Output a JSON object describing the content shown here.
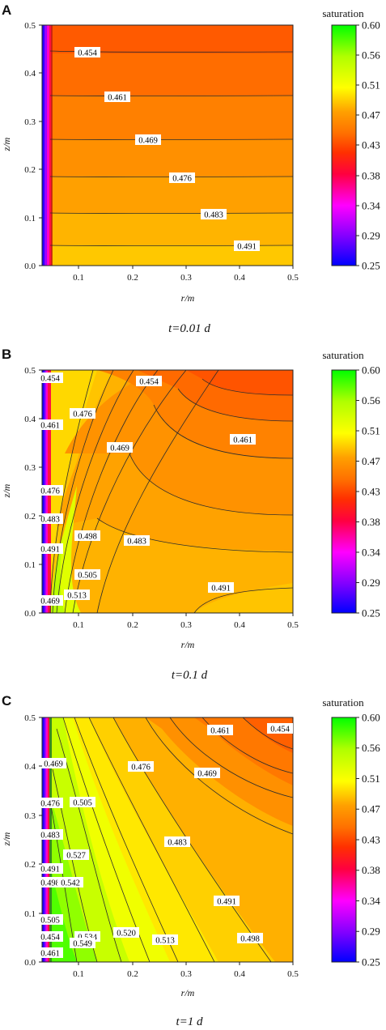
{
  "chart_data": [
    {
      "type": "contour",
      "panel_label": "A",
      "time_label": "t=0.01 d",
      "xlabel": "r/m",
      "ylabel": "z/m",
      "xlim": [
        0.02,
        0.5
      ],
      "ylim": [
        0.0,
        0.5
      ],
      "x_ticks": [
        "0.1",
        "0.2",
        "0.3",
        "0.4",
        "0.5"
      ],
      "y_ticks": [
        "0.0",
        "0.1",
        "0.2",
        "0.3",
        "0.4",
        "0.5"
      ],
      "colorbar_title": "saturation",
      "colorbar_ticks": [
        "0.60",
        "0.56",
        "0.51",
        "0.47",
        "0.43",
        "0.38",
        "0.34",
        "0.29",
        "0.25"
      ],
      "contour_labels": [
        {
          "text": "0.454",
          "r": 0.13,
          "z": 0.45
        },
        {
          "text": "0.461",
          "r": 0.2,
          "z": 0.36
        },
        {
          "text": "0.469",
          "r": 0.26,
          "z": 0.26
        },
        {
          "text": "0.476",
          "r": 0.31,
          "z": 0.176
        },
        {
          "text": "0.483",
          "r": 0.37,
          "z": 0.101
        },
        {
          "text": "0.491",
          "r": 0.43,
          "z": 0.039
        }
      ]
    },
    {
      "type": "contour",
      "panel_label": "B",
      "time_label": "t=0.1 d",
      "xlabel": "r/m",
      "ylabel": "z/m",
      "xlim": [
        0.02,
        0.5
      ],
      "ylim": [
        0.0,
        0.5
      ],
      "x_ticks": [
        "0.1",
        "0.2",
        "0.3",
        "0.4",
        "0.5"
      ],
      "y_ticks": [
        "0.0",
        "0.1",
        "0.2",
        "0.3",
        "0.4",
        "0.5"
      ],
      "colorbar_title": "saturation",
      "colorbar_ticks": [
        "0.60",
        "0.56",
        "0.51",
        "0.47",
        "0.43",
        "0.38",
        "0.34",
        "0.29",
        "0.25"
      ],
      "contour_labels": [
        {
          "text": "0.454",
          "r": 0.033,
          "z": 0.483
        },
        {
          "text": "0.454",
          "r": 0.265,
          "z": 0.46
        },
        {
          "text": "0.476",
          "r": 0.095,
          "z": 0.405
        },
        {
          "text": "0.461",
          "r": 0.033,
          "z": 0.37
        },
        {
          "text": "0.469",
          "r": 0.185,
          "z": 0.335
        },
        {
          "text": "0.461",
          "r": 0.425,
          "z": 0.355
        },
        {
          "text": "0.476",
          "r": 0.033,
          "z": 0.255
        },
        {
          "text": "0.483",
          "r": 0.033,
          "z": 0.185
        },
        {
          "text": "0.498",
          "r": 0.098,
          "z": 0.158
        },
        {
          "text": "0.483",
          "r": 0.228,
          "z": 0.143
        },
        {
          "text": "0.491",
          "r": 0.033,
          "z": 0.118
        },
        {
          "text": "0.505",
          "r": 0.098,
          "z": 0.056
        },
        {
          "text": "0.513",
          "r": 0.078,
          "z": 0.03
        },
        {
          "text": "0.491",
          "r": 0.39,
          "z": 0.05
        },
        {
          "text": "0.469",
          "r": 0.033,
          "z": 0.021
        }
      ]
    },
    {
      "type": "contour",
      "panel_label": "C",
      "time_label": "t=1 d",
      "xlabel": "r/m",
      "ylabel": "z/m",
      "xlim": [
        0.02,
        0.5
      ],
      "ylim": [
        0.0,
        0.5
      ],
      "x_ticks": [
        "0.1",
        "0.2",
        "0.3",
        "0.4",
        "0.5"
      ],
      "y_ticks": [
        "0.0",
        "0.1",
        "0.2",
        "0.3",
        "0.4",
        "0.5"
      ],
      "colorbar_title": "saturation",
      "colorbar_ticks": [
        "0.60",
        "0.56",
        "0.51",
        "0.47",
        "0.43",
        "0.38",
        "0.34",
        "0.29",
        "0.25"
      ],
      "contour_labels": [
        {
          "text": "0.461",
          "r": 0.335,
          "z": 0.47
        },
        {
          "text": "0.454",
          "r": 0.478,
          "z": 0.474
        },
        {
          "text": "0.476",
          "r": 0.172,
          "z": 0.405
        },
        {
          "text": "0.469",
          "r": 0.306,
          "z": 0.392
        },
        {
          "text": "0.469",
          "r": 0.043,
          "z": 0.395
        },
        {
          "text": "0.476",
          "r": 0.033,
          "z": 0.325
        },
        {
          "text": "0.505",
          "r": 0.08,
          "z": 0.302
        },
        {
          "text": "0.483",
          "r": 0.033,
          "z": 0.261
        },
        {
          "text": "0.483",
          "r": 0.272,
          "z": 0.245
        },
        {
          "text": "0.491",
          "r": 0.033,
          "z": 0.193
        },
        {
          "text": "0.527",
          "r": 0.075,
          "z": 0.175
        },
        {
          "text": "0.498",
          "r": 0.033,
          "z": 0.159
        },
        {
          "text": "0.542",
          "r": 0.065,
          "z": 0.121
        },
        {
          "text": "0.491",
          "r": 0.352,
          "z": 0.115
        },
        {
          "text": "0.505",
          "r": 0.033,
          "z": 0.088
        },
        {
          "text": "0.454",
          "r": 0.033,
          "z": 0.054
        },
        {
          "text": "0.534",
          "r": 0.095,
          "z": 0.061
        },
        {
          "text": "0.520",
          "r": 0.183,
          "z": 0.041
        },
        {
          "text": "0.513",
          "r": 0.255,
          "z": 0.026
        },
        {
          "text": "0.498",
          "r": 0.415,
          "z": 0.031
        },
        {
          "text": "0.549",
          "r": 0.085,
          "z": 0.019
        },
        {
          "text": "0.461",
          "r": 0.033,
          "z": 0.006
        }
      ]
    }
  ]
}
